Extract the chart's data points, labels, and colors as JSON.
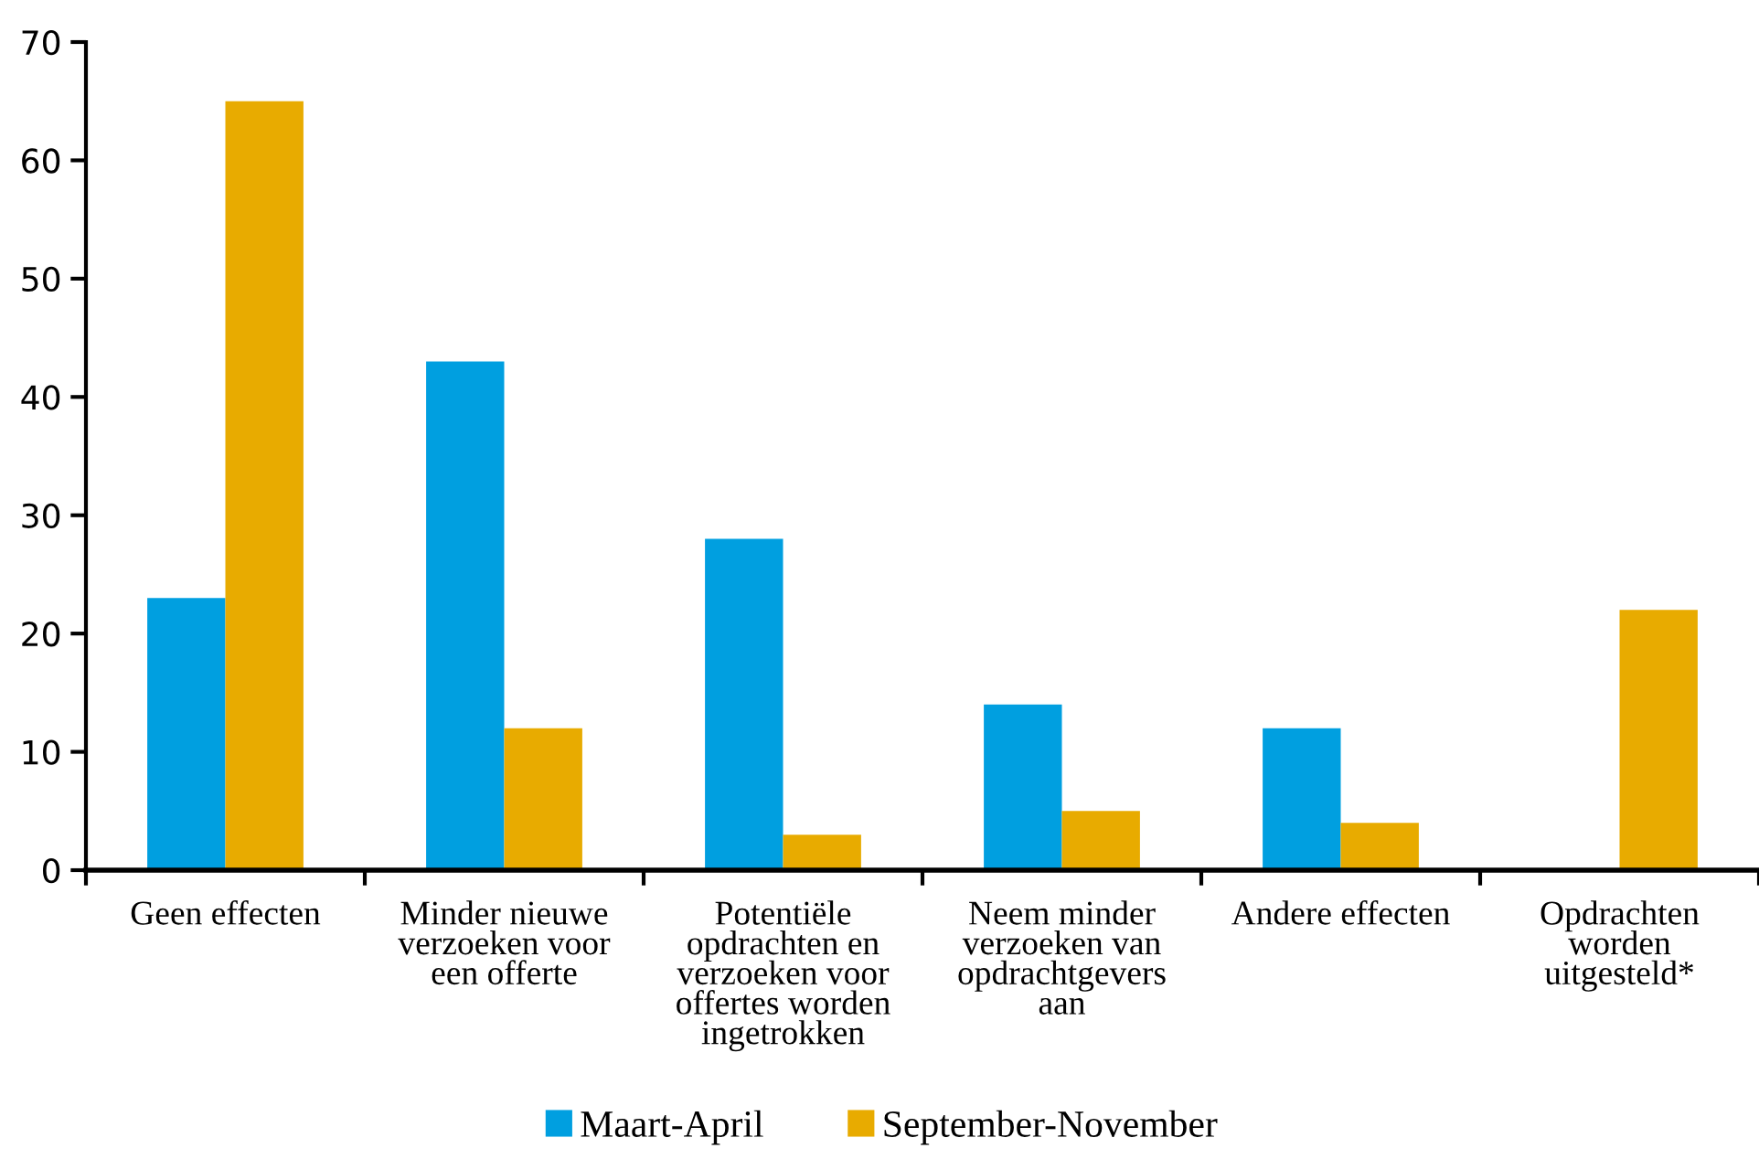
{
  "chart_data": {
    "type": "bar",
    "categories": [
      "Geen effecten",
      "Minder nieuwe\nverzoeken voor\neen offerte",
      "Potentiële\nopdrachten en\nverzoeken voor\noffertes worden\ningetrokken",
      "Neem minder\nverzoeken van\nopdrachtgevers\naan",
      "Andere effecten",
      "Opdrachten\nworden\nuitgesteld*"
    ],
    "series": [
      {
        "name": "Maart-April",
        "color": "#009fe0",
        "values": [
          23,
          43,
          28,
          14,
          12,
          null
        ]
      },
      {
        "name": "September-November",
        "color": "#e8ab00",
        "values": [
          65,
          12,
          3,
          5,
          4,
          22
        ]
      }
    ],
    "ylim": [
      0,
      70
    ],
    "yticks": [
      0,
      10,
      20,
      30,
      40,
      50,
      60,
      70
    ],
    "grid": false,
    "legend": "bottom"
  }
}
